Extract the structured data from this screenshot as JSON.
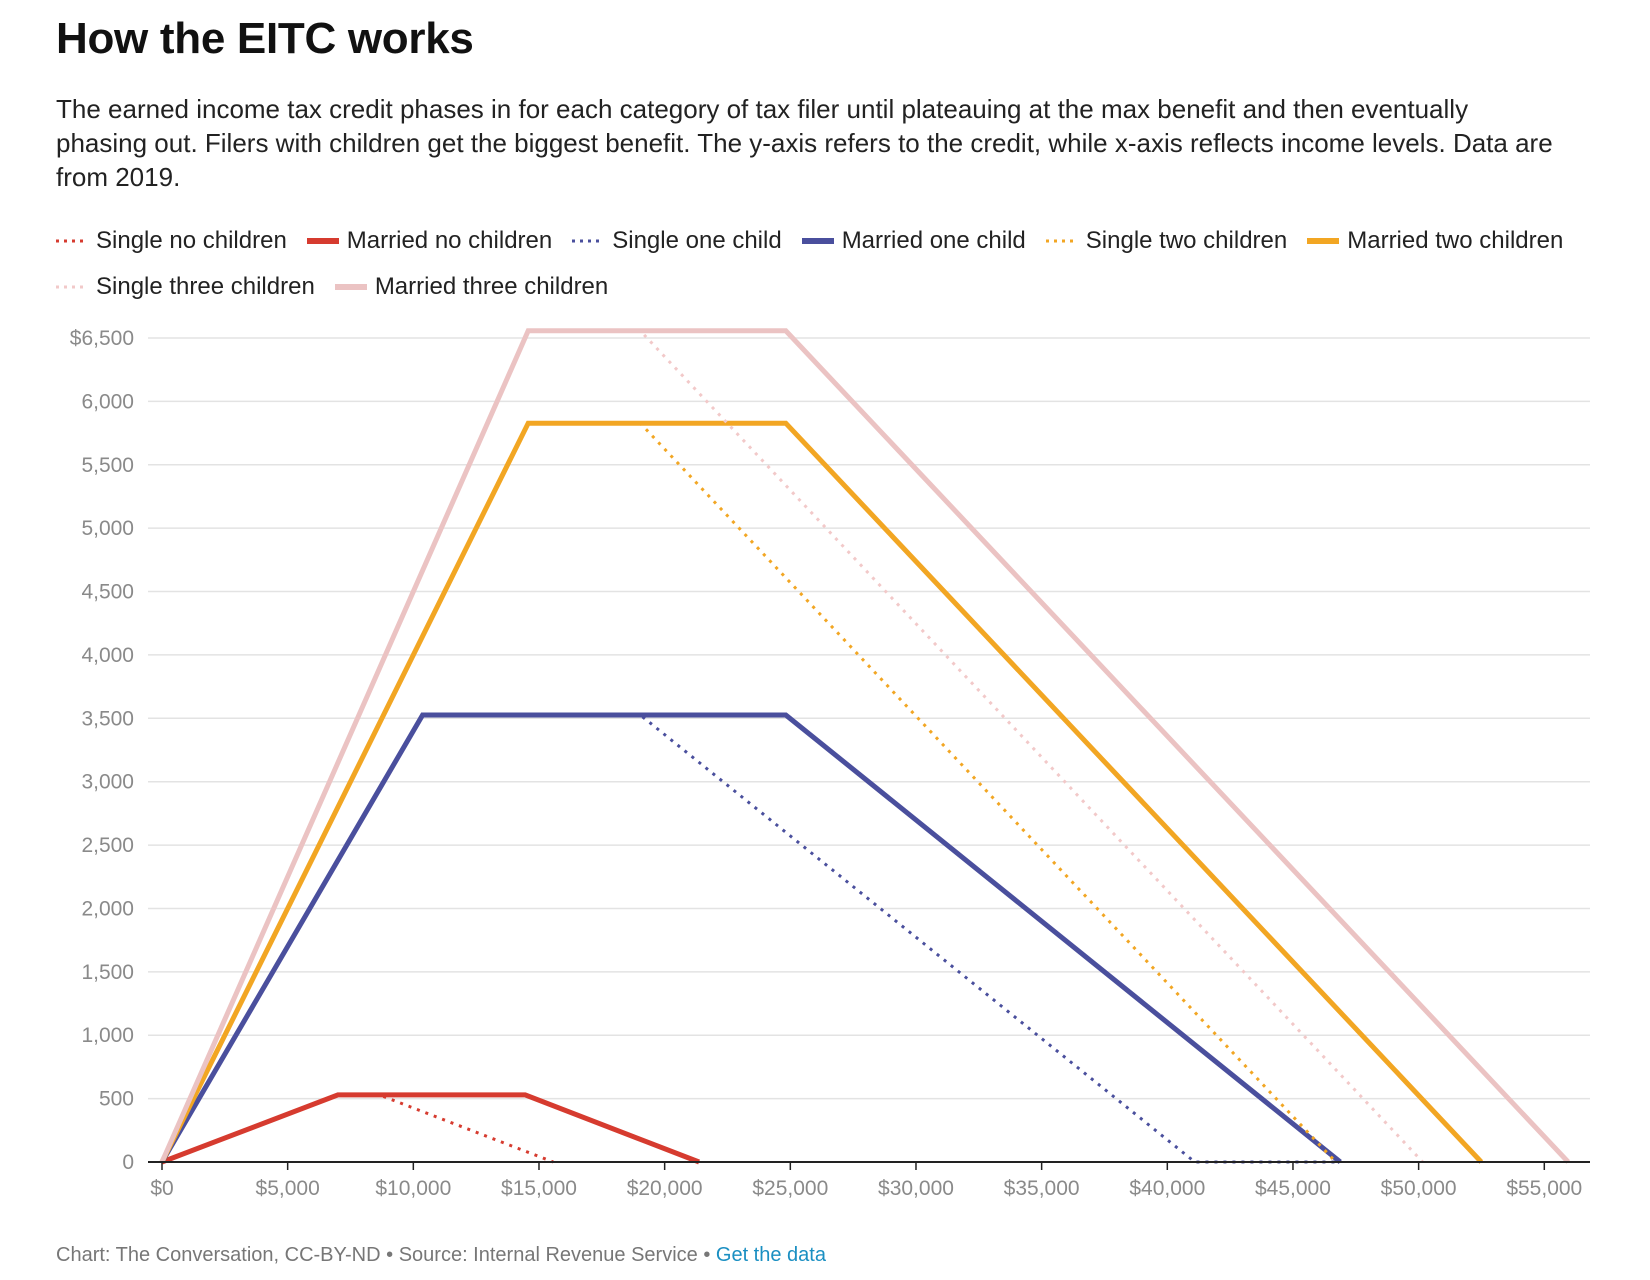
{
  "title": "How the EITC works",
  "description": "The earned income tax credit phases in for each category of tax filer until plateauing at the max benefit and then eventually phasing out. Filers with children get the biggest benefit. The y-axis refers to the credit, while x-axis reflects income levels. Data are from 2019.",
  "footer": {
    "credit": "Chart: The Conversation, CC-BY-ND",
    "separator1": " • ",
    "source": "Source: Internal Revenue Service",
    "separator2": " • ",
    "link": "Get the data"
  },
  "chart_data": {
    "type": "line",
    "title": "How the EITC works",
    "xlabel": "",
    "ylabel": "",
    "xlim": [
      0,
      56500
    ],
    "ylim": [
      0,
      6500
    ],
    "x_ticks": [
      0,
      5000,
      10000,
      15000,
      20000,
      25000,
      30000,
      35000,
      40000,
      45000,
      50000,
      55000
    ],
    "x_tick_labels": [
      "$0",
      "$5,000",
      "$10,000",
      "$15,000",
      "$20,000",
      "$25,000",
      "$30,000",
      "$35,000",
      "$40,000",
      "$45,000",
      "$50,000",
      "$55,000"
    ],
    "y_ticks": [
      0,
      500,
      1000,
      1500,
      2000,
      2500,
      3000,
      3500,
      4000,
      4500,
      5000,
      5500,
      6000,
      6500
    ],
    "y_tick_labels": [
      "0",
      "500",
      "1,000",
      "1,500",
      "2,000",
      "2,500",
      "3,000",
      "3,500",
      "4,000",
      "4,500",
      "5,000",
      "5,500",
      "6,000",
      "$6,500"
    ],
    "grid": true,
    "legend_position": "top",
    "series": [
      {
        "name": "Single no children",
        "color": "#d63b2f",
        "style": "dotted",
        "points": [
          [
            0,
            0
          ],
          [
            7000,
            529
          ],
          [
            8650,
            529
          ],
          [
            15570,
            0
          ]
        ]
      },
      {
        "name": "Married no children",
        "color": "#d63b2f",
        "style": "solid",
        "points": [
          [
            0,
            0
          ],
          [
            7000,
            529
          ],
          [
            14450,
            529
          ],
          [
            21370,
            0
          ]
        ]
      },
      {
        "name": "Single one child",
        "color": "#4a4f9d",
        "style": "dotted",
        "points": [
          [
            0,
            0
          ],
          [
            10370,
            3526
          ],
          [
            19030,
            3526
          ],
          [
            41094,
            0
          ],
          [
            46884,
            0
          ]
        ]
      },
      {
        "name": "Married one child",
        "color": "#4a4f9d",
        "style": "solid",
        "points": [
          [
            0,
            0
          ],
          [
            10370,
            3526
          ],
          [
            24820,
            3526
          ],
          [
            46884,
            0
          ]
        ]
      },
      {
        "name": "Single two children",
        "color": "#f2a623",
        "style": "dotted",
        "points": [
          [
            0,
            0
          ],
          [
            14570,
            5828
          ],
          [
            19030,
            5828
          ],
          [
            46703,
            0
          ]
        ]
      },
      {
        "name": "Married two children",
        "color": "#f2a623",
        "style": "solid",
        "points": [
          [
            0,
            0
          ],
          [
            14570,
            5828
          ],
          [
            24820,
            5828
          ],
          [
            52493,
            0
          ]
        ]
      },
      {
        "name": "Single three children",
        "color": "#f2c9c9",
        "style": "dotted",
        "points": [
          [
            0,
            0
          ],
          [
            14570,
            6557
          ],
          [
            19030,
            6557
          ],
          [
            50162,
            0
          ]
        ]
      },
      {
        "name": "Married three children",
        "color": "#ebc3c3",
        "style": "solid",
        "points": [
          [
            0,
            0
          ],
          [
            14570,
            6557
          ],
          [
            24820,
            6557
          ],
          [
            55952,
            0
          ]
        ]
      }
    ]
  }
}
